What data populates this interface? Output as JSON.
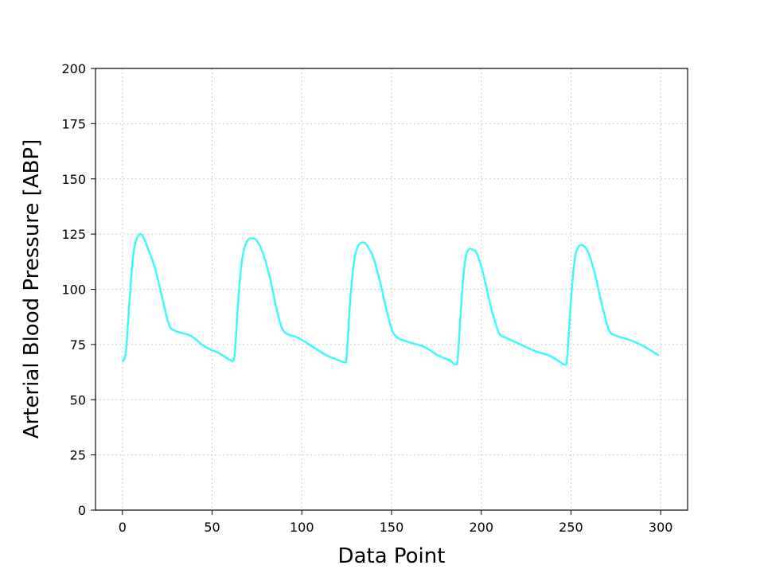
{
  "chart_data": {
    "type": "line",
    "title": "",
    "xlabel": "Data Point",
    "ylabel": "Arterial Blood Pressure [ABP]",
    "xlim": [
      -15,
      315
    ],
    "ylim": [
      0,
      200
    ],
    "x_ticks": [
      0,
      50,
      100,
      150,
      200,
      250,
      300
    ],
    "y_ticks": [
      0,
      25,
      50,
      75,
      100,
      125,
      150,
      175,
      200
    ],
    "grid": true,
    "series_color": "#40F8F8",
    "series": [
      {
        "x": [
          0,
          2,
          4,
          6,
          8,
          10,
          12,
          14,
          18,
          22,
          26,
          30,
          38,
          46,
          54,
          60,
          62,
          63,
          65,
          67,
          69,
          71,
          73,
          75,
          78,
          82,
          86,
          90,
          98,
          106,
          114,
          120,
          124,
          125,
          127,
          129,
          131,
          133,
          135,
          137,
          140,
          144,
          148,
          152,
          160,
          168,
          176,
          182,
          186,
          187,
          189,
          191,
          193,
          195,
          197,
          199,
          202,
          206,
          210,
          214,
          222,
          230,
          238,
          244,
          247,
          248,
          250,
          252,
          254,
          256,
          258,
          260,
          263,
          267,
          271,
          275,
          283,
          291,
          299
        ],
        "y": [
          67,
          72,
          95,
          115,
          123,
          125,
          123,
          119,
          110,
          97,
          84,
          81,
          79,
          74,
          71,
          68,
          68,
          75,
          100,
          115,
          121,
          123,
          123,
          122,
          117,
          106,
          91,
          81,
          78,
          74,
          70,
          68,
          67,
          70,
          95,
          112,
          119,
          121,
          121,
          119,
          114,
          102,
          88,
          79,
          76,
          74,
          70,
          68,
          66,
          70,
          95,
          113,
          118,
          118,
          117,
          113,
          104,
          90,
          80,
          78,
          75,
          72,
          70,
          67,
          66,
          70,
          95,
          113,
          119,
          120,
          119,
          116,
          108,
          94,
          82,
          79,
          77,
          74,
          70
        ]
      }
    ]
  }
}
